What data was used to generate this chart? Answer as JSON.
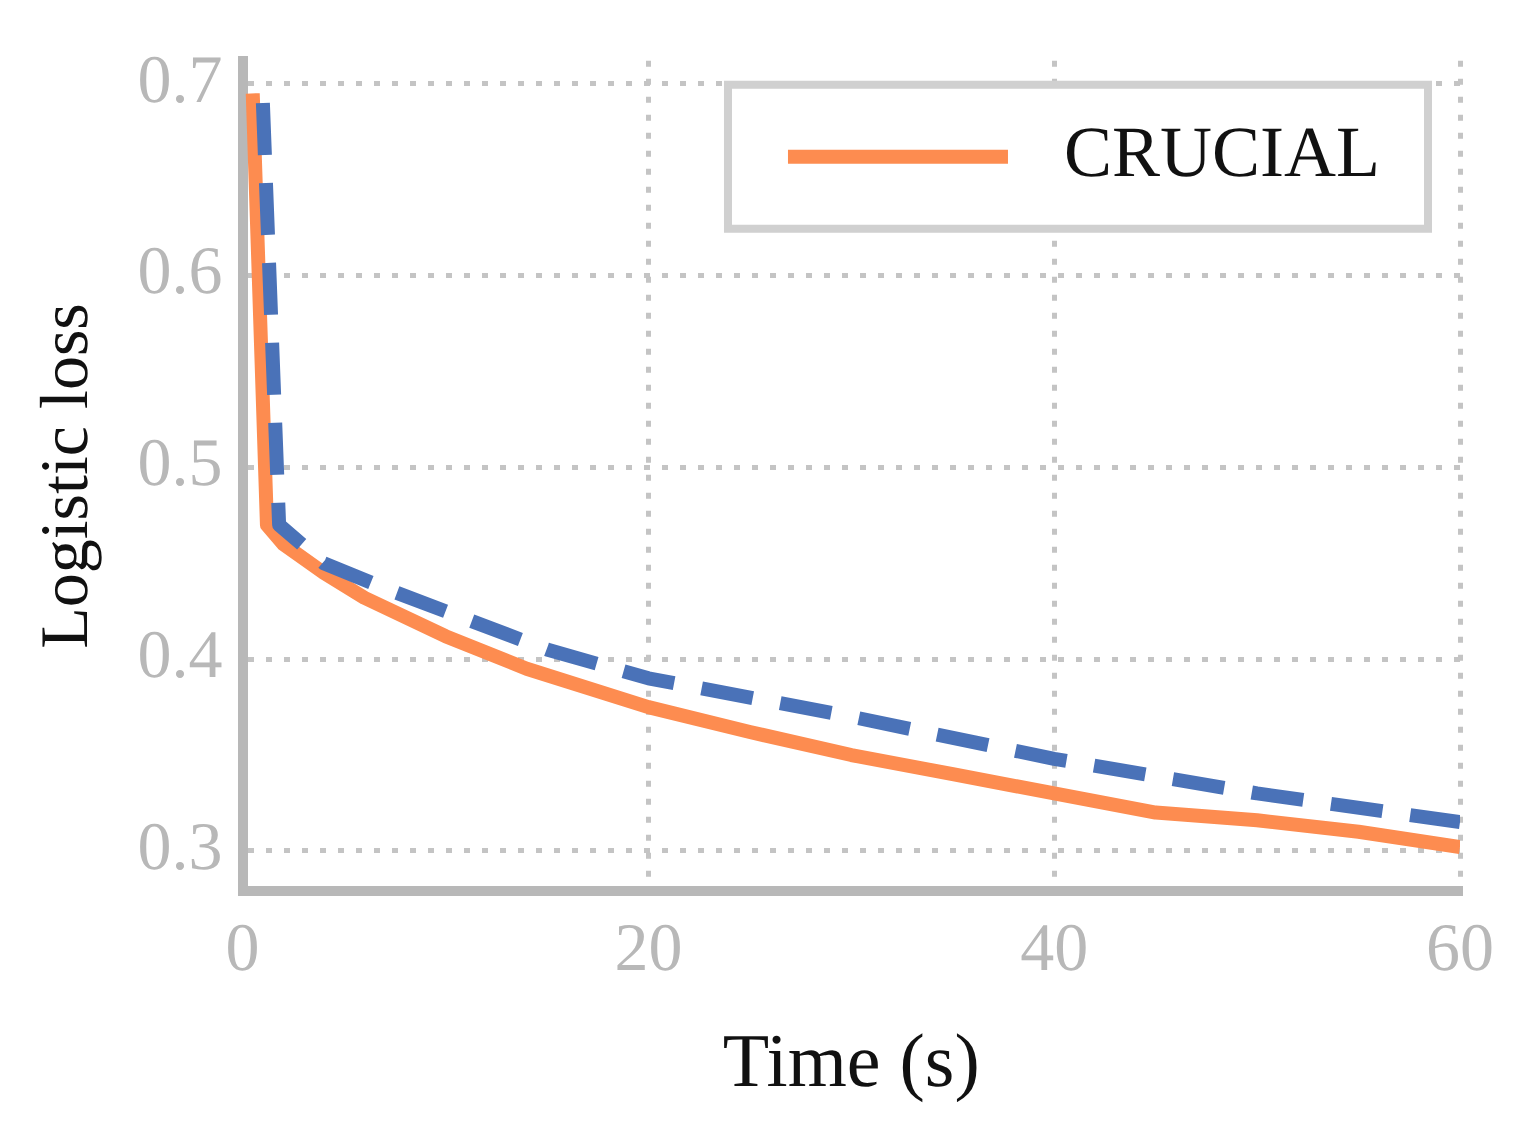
{
  "chart_data": {
    "type": "line",
    "xlabel": "Time (s)",
    "ylabel": "Logistic loss",
    "xlim": [
      0,
      60
    ],
    "xticks": [
      0,
      20,
      40,
      60
    ],
    "ylim": [
      0.279,
      0.712
    ],
    "yticks": [
      0.3,
      0.4,
      0.5,
      0.6,
      0.7
    ],
    "grid": true,
    "legend": "top right",
    "marker": "none",
    "series": [
      {
        "color": "#4a72b8",
        "line_style": "dashed",
        "x": [
          1,
          1.8,
          4,
          7,
          10,
          15,
          20,
          30,
          40,
          50,
          60
        ],
        "values": [
          0.69,
          0.47,
          0.45,
          0.437,
          0.425,
          0.405,
          0.39,
          0.37,
          0.348,
          0.33,
          0.315
        ]
      },
      {
        "name": "CRUCIAL",
        "color": "#fd8c50",
        "line_style": "solid",
        "x": [
          0.5,
          1.2,
          2,
          4,
          6,
          10,
          14,
          20,
          25,
          30,
          35,
          40,
          45,
          50,
          55,
          60
        ],
        "values": [
          0.695,
          0.47,
          0.46,
          0.445,
          0.432,
          0.412,
          0.395,
          0.375,
          0.362,
          0.35,
          0.34,
          0.33,
          0.32,
          0.316,
          0.31,
          0.302
        ]
      }
    ]
  }
}
